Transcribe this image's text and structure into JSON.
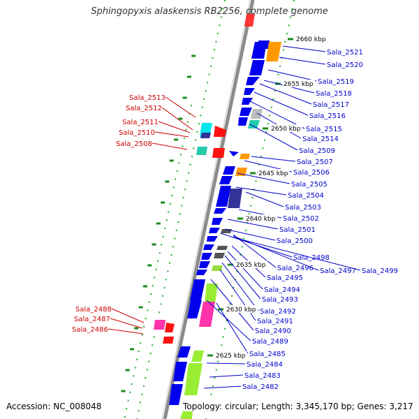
{
  "title": "Sphingopyxis alaskensis RB2256, complete genome",
  "footer": {
    "accession_label": "Accession:",
    "accession": "NC_008048",
    "topology_label": "Topology:",
    "topology": "circular",
    "length_label": "Length:",
    "length": "3,345,170 bp",
    "genes_label": "Genes:",
    "genes": "3,217"
  },
  "colors": {
    "forward_label": "#0000cc",
    "reverse_label": "#cc0000",
    "backbone": "#808080",
    "tick": "#008000"
  },
  "kbp_marks": [
    "2660 kbp",
    "2655 kbp",
    "2650 kbp",
    "2645 kbp",
    "2640 kbp",
    "2635 kbp",
    "2630 kbp",
    "2625 kbp"
  ],
  "forward_labels": [
    "Sala_2521",
    "Sala_2520",
    "Sala_2519",
    "Sala_2518",
    "Sala_2517",
    "Sala_2516",
    "Sala_2515",
    "Sala_2514",
    "Sala_2509",
    "Sala_2507",
    "Sala_2506",
    "Sala_2505",
    "Sala_2504",
    "Sala_2503",
    "Sala_2502",
    "Sala_2501",
    "Sala_2500",
    "Sala_2498",
    "Sala_2496",
    "Sala_2497",
    "Sala_2499",
    "Sala_2495",
    "Sala_2494",
    "Sala_2493",
    "Sala_2492",
    "Sala_2491",
    "Sala_2490",
    "Sala_2489",
    "Sala_2485",
    "Sala_2484",
    "Sala_2483",
    "Sala_2482"
  ],
  "reverse_labels": [
    "Sala_2513",
    "Sala_2512",
    "Sala_2511",
    "Sala_2510",
    "Sala_2508",
    "Sala_2488",
    "Sala_2487",
    "Sala_2486"
  ]
}
